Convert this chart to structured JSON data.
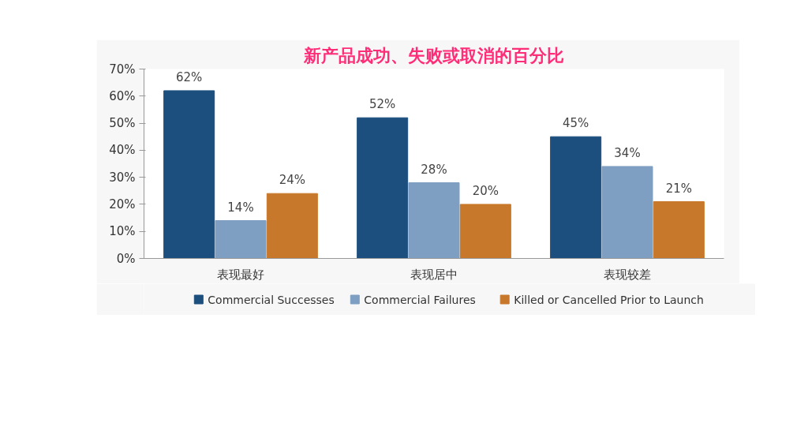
{
  "chart_data": {
    "type": "bar",
    "title": "新产品成功、失败或取消的百分比",
    "categories": [
      "表现最好",
      "表现居中",
      "表现较差"
    ],
    "series": [
      {
        "name": "Commercial Successes",
        "color": "#1d4f7e",
        "values": [
          62,
          52,
          45
        ]
      },
      {
        "name": "Commercial Failures",
        "color": "#7f9fc2",
        "values": [
          14,
          28,
          34
        ]
      },
      {
        "name": "Killed or Cancelled Prior to Launch",
        "color": "#c8782a",
        "values": [
          24,
          20,
          21
        ]
      }
    ],
    "ylim": [
      0,
      70
    ],
    "yticks": [
      {
        "value": 0,
        "label": "0%"
      },
      {
        "value": 10,
        "label": "10%"
      },
      {
        "value": 20,
        "label": "20%"
      },
      {
        "value": 30,
        "label": "30%"
      },
      {
        "value": 40,
        "label": "40%"
      },
      {
        "value": 50,
        "label": "50%"
      },
      {
        "value": 60,
        "label": "60%"
      },
      {
        "value": 70,
        "label": "70%"
      }
    ],
    "value_labels": [
      [
        "62%",
        "52%",
        "45%"
      ],
      [
        "14%",
        "28%",
        "34%"
      ],
      [
        "24%",
        "20%",
        "21%"
      ]
    ],
    "grid": false,
    "legend": "bottom"
  }
}
